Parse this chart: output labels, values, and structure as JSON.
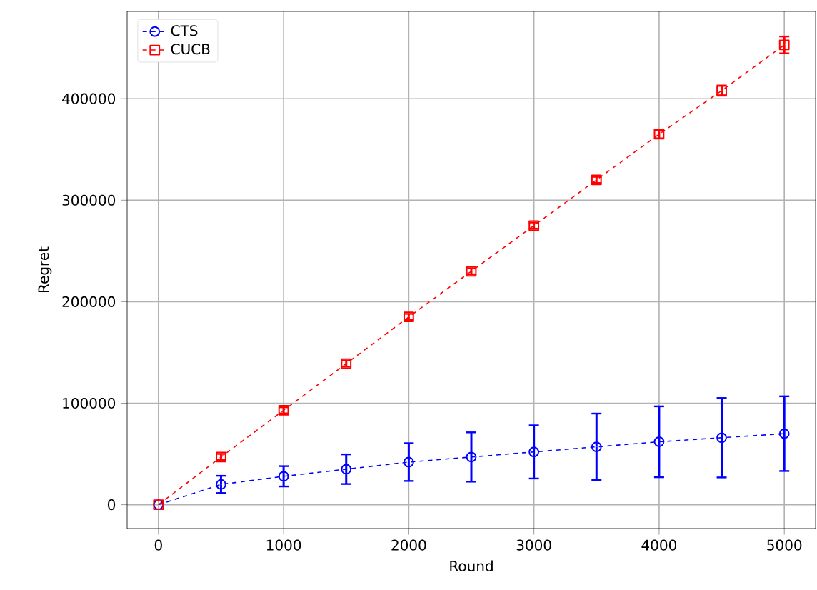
{
  "chart_data": {
    "type": "line",
    "xlabel": "Round",
    "ylabel": "Regret",
    "x": [
      0,
      500,
      1000,
      1500,
      2000,
      2500,
      3000,
      3500,
      4000,
      4500,
      5000
    ],
    "series": [
      {
        "name": "CTS",
        "color": "#0000ff",
        "marker": "circle",
        "values": [
          0,
          20000,
          28000,
          35000,
          42000,
          47000,
          52000,
          57000,
          62000,
          66000,
          70000
        ],
        "errors": [
          null,
          8500,
          10000,
          14600,
          18600,
          24300,
          26200,
          32800,
          34900,
          39100,
          36800
        ]
      },
      {
        "name": "CUCB",
        "color": "#ff0000",
        "marker": "square",
        "values": [
          0,
          47000,
          93000,
          139000,
          185000,
          230000,
          275000,
          320000,
          365000,
          408000,
          453000
        ],
        "errors": [
          null,
          3000,
          3000,
          3000,
          3000,
          3000,
          3000,
          3000,
          4000,
          5000,
          8300
        ]
      }
    ],
    "xlim": [
      -250,
      5250
    ],
    "ylim": [
      -23500,
      486000
    ],
    "xticks": [
      0,
      1000,
      2000,
      3000,
      4000,
      5000
    ],
    "yticks": [
      0,
      100000,
      200000,
      300000,
      400000
    ],
    "grid": true,
    "legend": "top left",
    "line_style": "dashed"
  }
}
